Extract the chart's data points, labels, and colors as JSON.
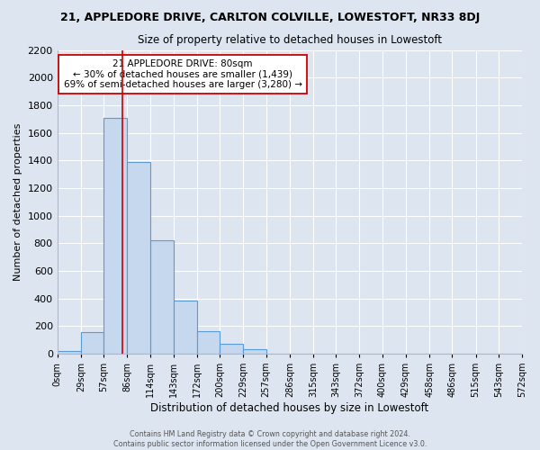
{
  "title": "21, APPLEDORE DRIVE, CARLTON COLVILLE, LOWESTOFT, NR33 8DJ",
  "subtitle": "Size of property relative to detached houses in Lowestoft",
  "xlabel": "Distribution of detached houses by size in Lowestoft",
  "ylabel": "Number of detached properties",
  "bar_heights": [
    20,
    155,
    1710,
    1390,
    825,
    385,
    165,
    70,
    30,
    0,
    0,
    0,
    0,
    0,
    0,
    0,
    0,
    0,
    0,
    0
  ],
  "bin_edges": [
    0,
    29,
    57,
    86,
    114,
    143,
    172,
    200,
    229,
    257,
    286,
    315,
    343,
    372,
    400,
    429,
    458,
    486,
    515,
    543,
    572
  ],
  "tick_labels": [
    "0sqm",
    "29sqm",
    "57sqm",
    "86sqm",
    "114sqm",
    "143sqm",
    "172sqm",
    "200sqm",
    "229sqm",
    "257sqm",
    "286sqm",
    "315sqm",
    "343sqm",
    "372sqm",
    "400sqm",
    "429sqm",
    "458sqm",
    "486sqm",
    "515sqm",
    "543sqm",
    "572sqm"
  ],
  "bar_color": "#c5d8ee",
  "bar_edge_color": "#5b9bd5",
  "vline_x": 80,
  "vline_color": "#cc0000",
  "ylim": [
    0,
    2200
  ],
  "yticks": [
    0,
    200,
    400,
    600,
    800,
    1000,
    1200,
    1400,
    1600,
    1800,
    2000,
    2200
  ],
  "annotation_title": "21 APPLEDORE DRIVE: 80sqm",
  "annotation_line1": "← 30% of detached houses are smaller (1,439)",
  "annotation_line2": "69% of semi-detached houses are larger (3,280) →",
  "annotation_box_color": "#ffffff",
  "annotation_box_edge": "#cc0000",
  "footer1": "Contains HM Land Registry data © Crown copyright and database right 2024.",
  "footer2": "Contains public sector information licensed under the Open Government Licence v3.0.",
  "background_color": "#dde6f0",
  "grid_color": "#ffffff",
  "spine_color": "#b0b8c8"
}
